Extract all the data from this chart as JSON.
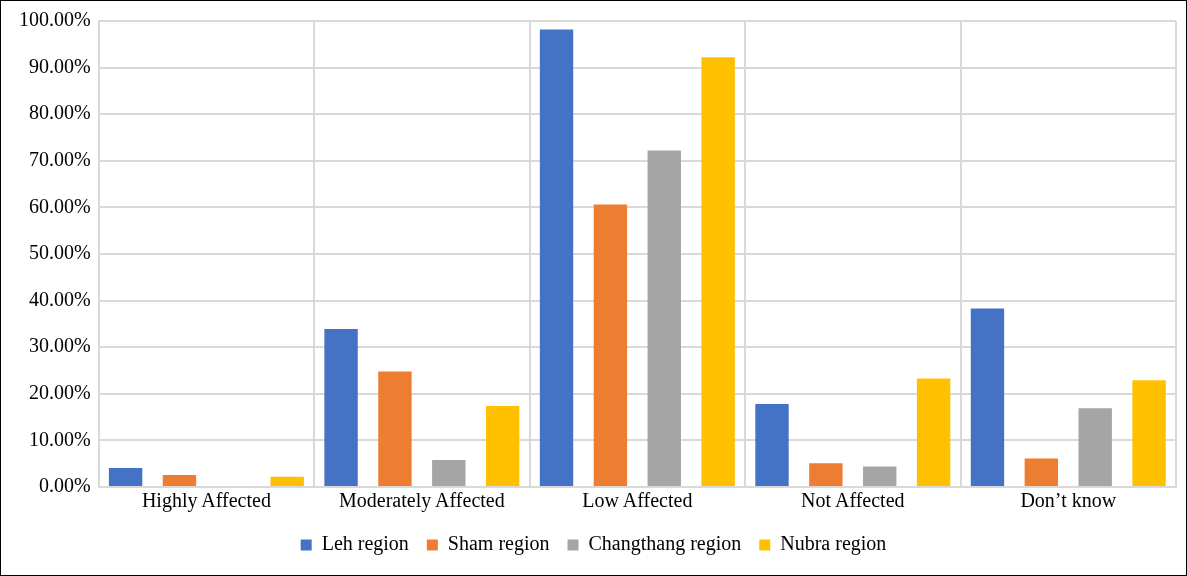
{
  "chart_data": {
    "type": "bar",
    "categories": [
      "Highly Affected",
      "Moderately Affected",
      "Low Affected",
      "Not Affected",
      "Don’t know"
    ],
    "series": [
      {
        "name": "Leh region",
        "color": "#4472c4",
        "values": [
          4.1,
          33.9,
          98.2,
          17.8,
          38.3
        ]
      },
      {
        "name": "Sham region",
        "color": "#ed7d31",
        "values": [
          2.6,
          24.8,
          60.6,
          5.1,
          6.1
        ]
      },
      {
        "name": "Changthang region",
        "color": "#a5a5a5",
        "values": [
          0,
          5.8,
          72.2,
          4.4,
          16.9
        ]
      },
      {
        "name": "Nubra region",
        "color": "#ffc000",
        "values": [
          2.2,
          17.4,
          92.2,
          23.3,
          22.9
        ]
      }
    ],
    "ylim": [
      0,
      100
    ],
    "yticks": [
      {
        "value": 0,
        "label": "0.00%"
      },
      {
        "value": 10,
        "label": "10.00%"
      },
      {
        "value": 20,
        "label": "20.00%"
      },
      {
        "value": 30,
        "label": "30.00%"
      },
      {
        "value": 40,
        "label": "40.00%"
      },
      {
        "value": 50,
        "label": "50.00%"
      },
      {
        "value": 60,
        "label": "60.00%"
      },
      {
        "value": 70,
        "label": "70.00%"
      },
      {
        "value": 80,
        "label": "80.00%"
      },
      {
        "value": 90,
        "label": "90.00%"
      },
      {
        "value": 100,
        "label": "100.00%"
      }
    ],
    "grid": true,
    "legend": "bottom"
  }
}
